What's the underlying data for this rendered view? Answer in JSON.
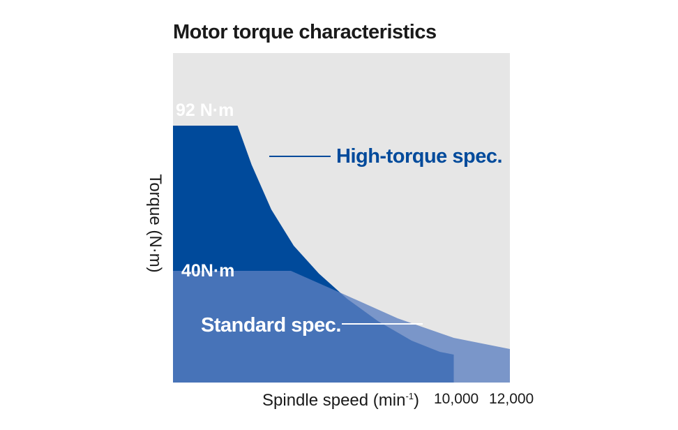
{
  "chart_data": {
    "type": "area",
    "title": "Motor torque characteristics",
    "xlabel": "Spindle speed (min",
    "xlabel_sup": "-1",
    "xlabel_close": ")",
    "ylabel": "Torque (N·m)",
    "x_ticks": [
      "10,000",
      "12,000"
    ],
    "xlim": [
      0,
      12000
    ],
    "ylim": [
      0,
      118
    ],
    "grid": false,
    "background_color": "#e6e6e6",
    "series": [
      {
        "name": "High-torque spec.",
        "color": "#004a9b",
        "peak_label": "92 N·m",
        "x": [
          0,
          2300,
          2800,
          3500,
          4300,
          5200,
          6200,
          7300,
          8500,
          9500,
          10000
        ],
        "y": [
          92,
          92,
          78,
          62,
          49,
          39,
          30,
          22,
          15,
          11,
          10
        ]
      },
      {
        "name": "Standard spec.",
        "color": "#5b7fc0",
        "peak_label": "40N·m",
        "x": [
          0,
          4200,
          6000,
          8000,
          10000,
          12000
        ],
        "y": [
          40,
          40,
          32,
          23,
          16,
          12
        ]
      }
    ]
  }
}
